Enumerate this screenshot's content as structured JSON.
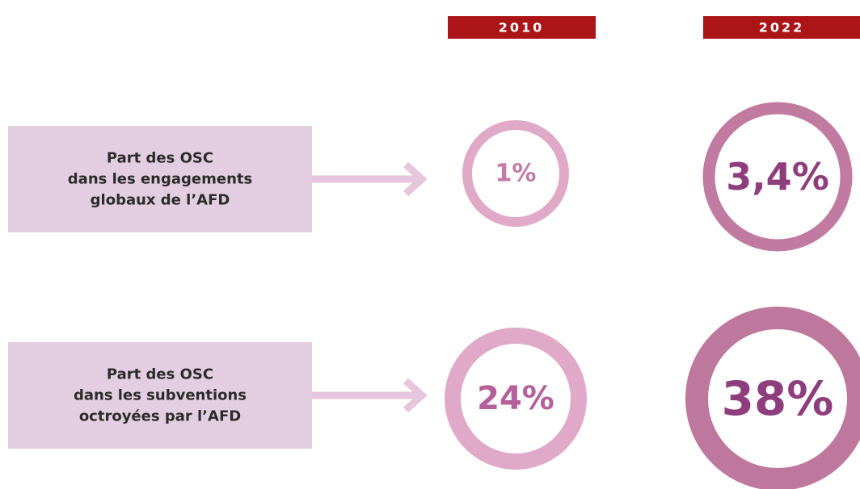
{
  "header": {
    "years": [
      "2010",
      "2022"
    ]
  },
  "rows": [
    {
      "label_lines": [
        "Part des OSC",
        "dans les engagements",
        "globaux de l’AFD"
      ],
      "values": [
        "1%",
        "3,4%"
      ]
    },
    {
      "label_lines": [
        "Part des OSC",
        "dans les subventions",
        "octroyées par l’AFD"
      ],
      "values": [
        "24%",
        "38%"
      ]
    }
  ]
}
